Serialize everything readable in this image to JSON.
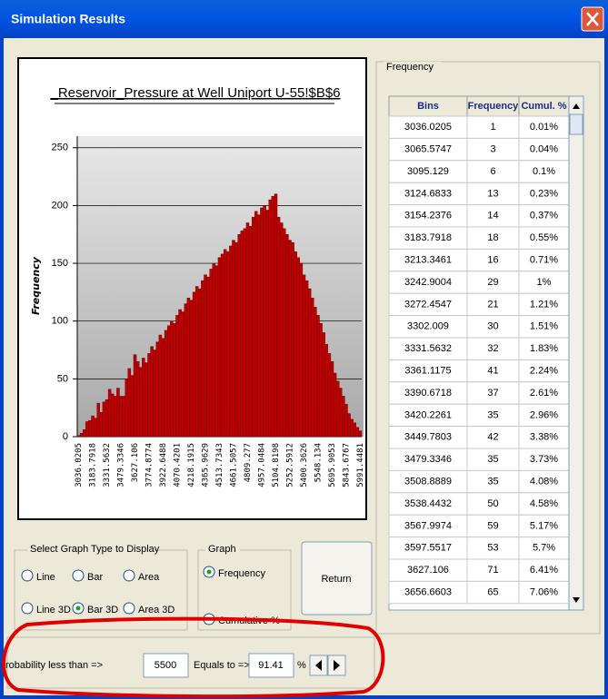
{
  "window": {
    "title": "Simulation Results"
  },
  "chart_data": {
    "type": "bar",
    "title": "_Reservoir_Pressure at Well Uniport U-55!$B$6",
    "y_label": "Frequency",
    "color": "#c00000",
    "categories": [
      "3036.0205",
      null,
      null,
      null,
      null,
      "3183.7918",
      null,
      null,
      null,
      null,
      "3331.5632",
      null,
      null,
      null,
      null,
      "3479.3346",
      null,
      null,
      null,
      null,
      "3627.106",
      null,
      null,
      null,
      null,
      "3774.8774",
      null,
      null,
      null,
      null,
      "3922.6488",
      null,
      null,
      null,
      null,
      "4070.4201",
      null,
      null,
      null,
      null,
      "4218.1915",
      null,
      null,
      null,
      null,
      "4365.9629",
      null,
      null,
      null,
      null,
      "4513.7343",
      null,
      null,
      null,
      null,
      "4661.5057",
      null,
      null,
      null,
      null,
      "4809.277",
      null,
      null,
      null,
      null,
      "4957.0484",
      null,
      null,
      null,
      null,
      "5104.8198",
      null,
      null,
      null,
      null,
      "5252.5912",
      null,
      null,
      null,
      null,
      "5400.3626",
      null,
      null,
      null,
      null,
      "5548.134",
      null,
      null,
      null,
      null,
      "5695.9053",
      null,
      null,
      null,
      null,
      "5843.6767",
      null,
      null,
      null,
      null,
      "5991.4481"
    ],
    "values": [
      1,
      3,
      6,
      13,
      14,
      18,
      16,
      29,
      21,
      30,
      32,
      41,
      37,
      35,
      42,
      35,
      35,
      50,
      59,
      53,
      71,
      65,
      60,
      68,
      64,
      72,
      78,
      75,
      82,
      88,
      85,
      92,
      96,
      100,
      98,
      105,
      110,
      108,
      115,
      120,
      118,
      125,
      130,
      128,
      135,
      140,
      138,
      145,
      150,
      148,
      155,
      158,
      162,
      160,
      165,
      170,
      168,
      175,
      178,
      180,
      185,
      182,
      190,
      195,
      192,
      198,
      200,
      196,
      205,
      208,
      210,
      190,
      185,
      180,
      175,
      170,
      168,
      160,
      155,
      150,
      140,
      135,
      128,
      120,
      112,
      105,
      98,
      90,
      80,
      72,
      65,
      55,
      48,
      42,
      35,
      28,
      20,
      15,
      12,
      8,
      5
    ],
    "ylim": [
      0,
      260
    ],
    "yticks": [
      0,
      50,
      100,
      150,
      200,
      250
    ],
    "grid": true
  },
  "frequency_panel": {
    "label": "Frequency",
    "table": {
      "headers": [
        "Bins",
        "Frequency",
        "Cumul. %"
      ],
      "rows": [
        [
          "3036.0205",
          1,
          "0.01%"
        ],
        [
          "3065.5747",
          3,
          "0.04%"
        ],
        [
          "3095.129",
          6,
          "0.1%"
        ],
        [
          "3124.6833",
          13,
          "0.23%"
        ],
        [
          "3154.2376",
          14,
          "0.37%"
        ],
        [
          "3183.7918",
          18,
          "0.55%"
        ],
        [
          "3213.3461",
          16,
          "0.71%"
        ],
        [
          "3242.9004",
          29,
          "1%"
        ],
        [
          "3272.4547",
          21,
          "1.21%"
        ],
        [
          "3302.009",
          30,
          "1.51%"
        ],
        [
          "3331.5632",
          32,
          "1.83%"
        ],
        [
          "3361.1175",
          41,
          "2.24%"
        ],
        [
          "3390.6718",
          37,
          "2.61%"
        ],
        [
          "3420.2261",
          35,
          "2.96%"
        ],
        [
          "3449.7803",
          42,
          "3.38%"
        ],
        [
          "3479.3346",
          35,
          "3.73%"
        ],
        [
          "3508.8889",
          35,
          "4.08%"
        ],
        [
          "3538.4432",
          50,
          "4.58%"
        ],
        [
          "3567.9974",
          59,
          "5.17%"
        ],
        [
          "3597.5517",
          53,
          "5.7%"
        ],
        [
          "3627.106",
          71,
          "6.41%"
        ],
        [
          "3656.6603",
          65,
          "7.06%"
        ]
      ]
    }
  },
  "graph_type": {
    "label": "Select Graph Type to Display",
    "options": [
      {
        "label": "Line",
        "checked": false
      },
      {
        "label": "Bar",
        "checked": false
      },
      {
        "label": "Area",
        "checked": false
      },
      {
        "label": "Line 3D",
        "checked": false
      },
      {
        "label": "Bar 3D",
        "checked": true
      },
      {
        "label": "Area 3D",
        "checked": false
      }
    ]
  },
  "graph": {
    "label": "Graph",
    "options": [
      {
        "label": "Frequency",
        "checked": true
      },
      {
        "label": "Cumulative %",
        "checked": false
      }
    ]
  },
  "return_button": "Return",
  "probability": {
    "label": "robability less than =>",
    "input": "5500",
    "equals_label": "Equals to =>",
    "result": "91.41",
    "unit": "%"
  }
}
